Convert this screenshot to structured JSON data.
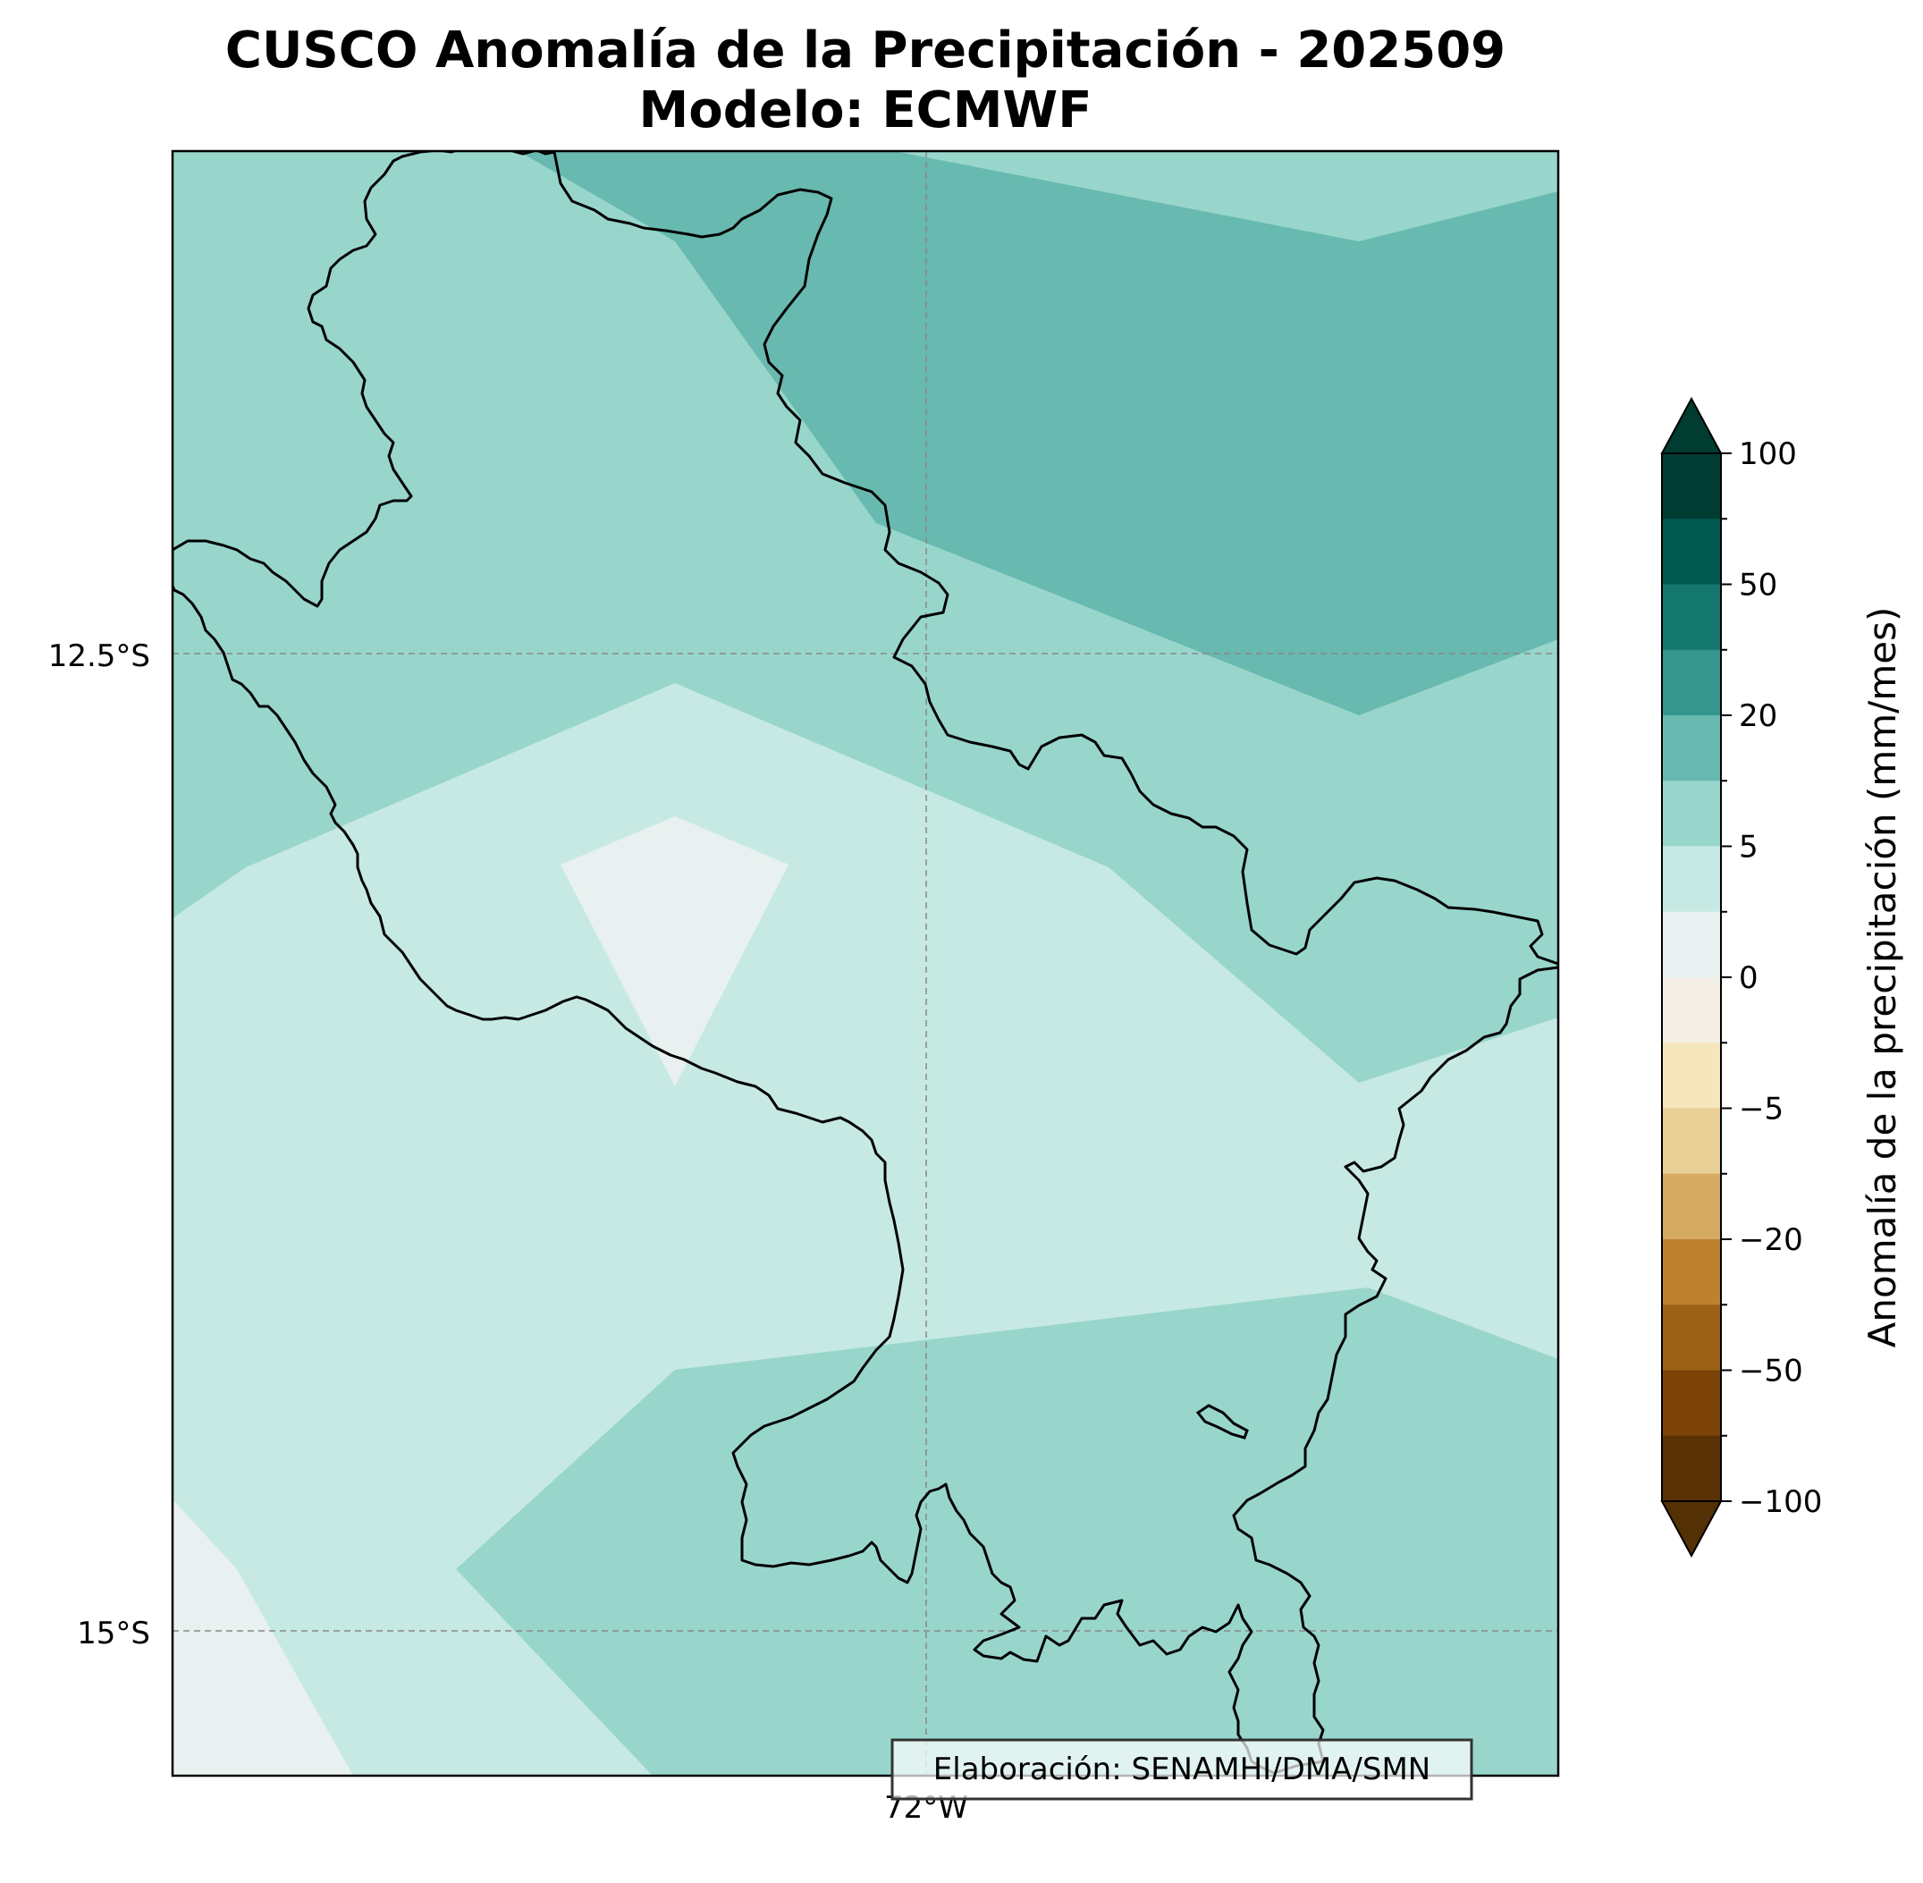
{
  "title_line1": "CUSCO Anomalía de la Precipitación - 202509",
  "title_line2": "Modelo: ECMWF",
  "axes": {
    "y_ticks": [
      "12.5°S",
      "15°S"
    ],
    "x_ticks": [
      "72°W"
    ]
  },
  "colorbar": {
    "label": "Anomalía de la precipitación (mm/mes)",
    "tick_labels": [
      "100",
      "50",
      "20",
      "5",
      "0",
      "−5",
      "−20",
      "−50",
      "−100"
    ],
    "bands_top_to_bottom": [
      "#013c33",
      "#01594f",
      "#14776e",
      "#35968e",
      "#68b9af",
      "#98d6cc",
      "#c7e9e3",
      "#e8f1ef",
      "#f4efe4",
      "#f6e6bd",
      "#e8cf96",
      "#d4ab61",
      "#be812f",
      "#9c6117",
      "#7b4307",
      "#593104"
    ],
    "extend_max_color": "#003c30",
    "extend_min_color": "#543005"
  },
  "credit": "Elaboración: SENAMHI/DMA/SMN",
  "colors": {
    "level_0_2": "#e8f1ef",
    "level_2_5": "#c7e9e3",
    "level_5_10": "#98d6cc",
    "level_10_20": "#68b9af"
  }
}
